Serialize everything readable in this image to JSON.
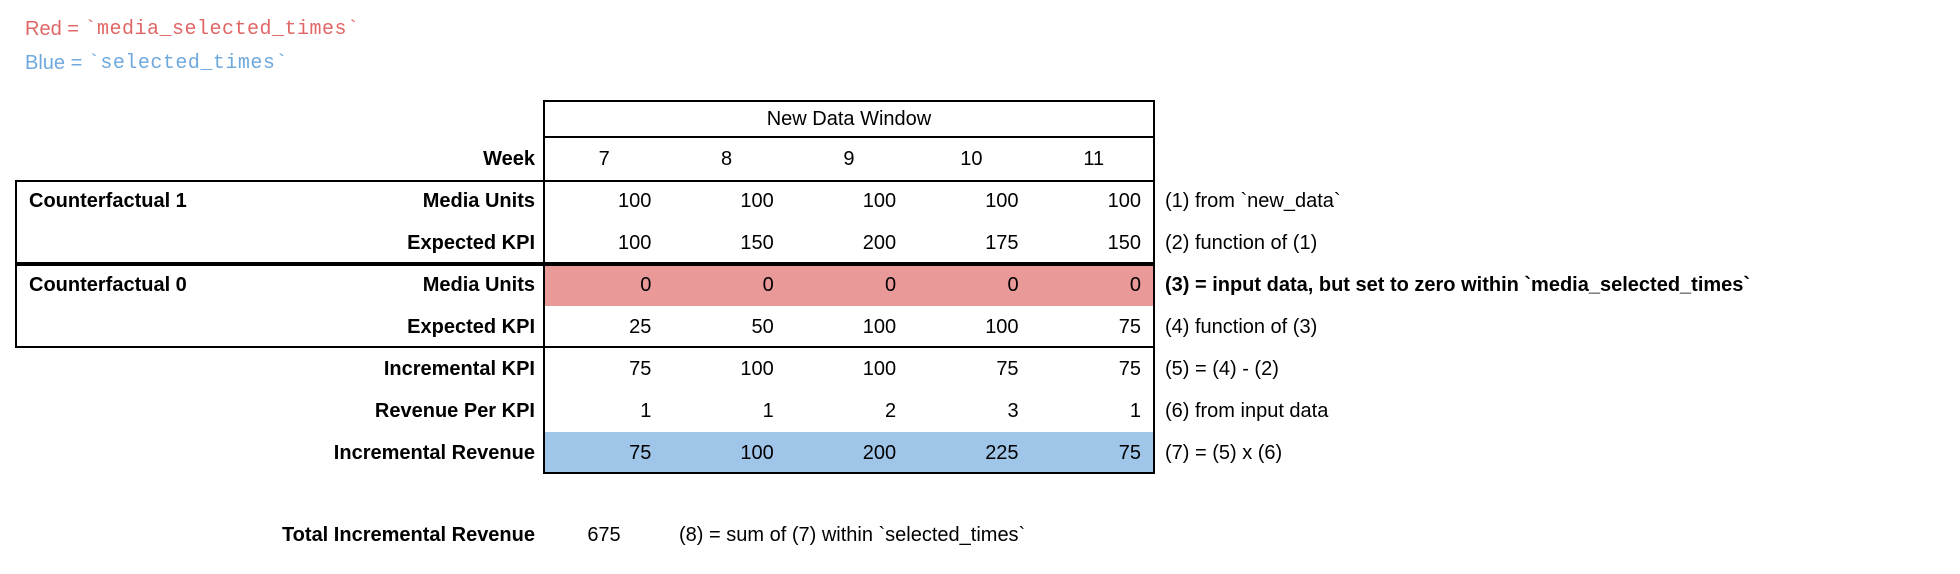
{
  "legend": {
    "red": {
      "label": "Red",
      "eq": " = ",
      "code": "`media_selected_times`"
    },
    "blue": {
      "label": "Blue",
      "eq": " = ",
      "code": "`selected_times`"
    }
  },
  "colors": {
    "legend_red": "#e06666",
    "legend_blue": "#6fa8dc",
    "highlight_red": "#ea9999",
    "highlight_blue": "#9fc5e8"
  },
  "table": {
    "window_header": "New Data Window",
    "week": {
      "label": "Week",
      "values": [
        "7",
        "8",
        "9",
        "10",
        "11"
      ]
    },
    "rows": [
      {
        "group": "Counterfactual 1",
        "label": "Media Units",
        "values": [
          "100",
          "100",
          "100",
          "100",
          "100"
        ],
        "note": "(1) from `new_data`"
      },
      {
        "group": "",
        "label": "Expected KPI",
        "values": [
          "100",
          "150",
          "200",
          "175",
          "150"
        ],
        "note": "(2) function of (1)"
      },
      {
        "group": "Counterfactual 0",
        "label": "Media Units",
        "values": [
          "0",
          "0",
          "0",
          "0",
          "0"
        ],
        "note": "(3) = input data, but set to zero within `media_selected_times`"
      },
      {
        "group": "",
        "label": "Expected KPI",
        "values": [
          "25",
          "50",
          "100",
          "100",
          "75"
        ],
        "note": "(4) function of (3)"
      },
      {
        "group": "",
        "label": "Incremental KPI",
        "values": [
          "75",
          "100",
          "100",
          "75",
          "75"
        ],
        "note": "(5) = (4) - (2)"
      },
      {
        "group": "",
        "label": "Revenue Per KPI",
        "values": [
          "1",
          "1",
          "2",
          "3",
          "1"
        ],
        "note": "(6) from input data"
      },
      {
        "group": "",
        "label": "Incremental Revenue",
        "values": [
          "75",
          "100",
          "200",
          "225",
          "75"
        ],
        "note": "(7) = (5) x (6)"
      }
    ]
  },
  "total": {
    "label": "Total Incremental Revenue",
    "value": "675",
    "note": "(8) = sum of (7) within `selected_times`"
  }
}
